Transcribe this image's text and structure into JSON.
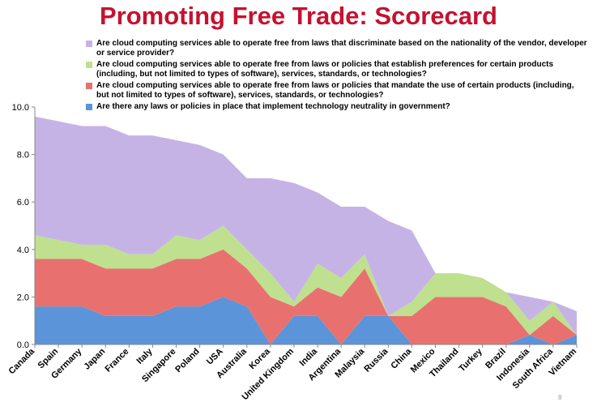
{
  "slide": {
    "title": "Promoting Free Trade: Scorecard",
    "page_number": "8"
  },
  "chart_data": {
    "type": "area",
    "title": "",
    "xlabel": "",
    "ylabel": "",
    "ylim": [
      0,
      10
    ],
    "yticks": [
      "0.0",
      "2.0",
      "4.0",
      "6.0",
      "8.0",
      "10.0"
    ],
    "grid": false,
    "legend_position": "top",
    "categories": [
      "Canada",
      "Spain",
      "Germany",
      "Japan",
      "France",
      "Italy",
      "Singapore",
      "Poland",
      "USA",
      "Australia",
      "Korea",
      "United Kingdom",
      "India",
      "Argentina",
      "Malaysia",
      "Russia",
      "China",
      "Mexico",
      "Thailand",
      "Turkey",
      "Brazil",
      "Indonesia",
      "South Africa",
      "Vietnam"
    ],
    "series": [
      {
        "name": "Are there any laws or policies in place that implement technology neutrality in government?",
        "color": "#5b94d9",
        "values": [
          1.6,
          1.6,
          1.6,
          1.2,
          1.2,
          1.2,
          1.6,
          1.6,
          2.0,
          1.6,
          0.0,
          1.2,
          1.2,
          0.0,
          1.2,
          1.2,
          0.0,
          0.0,
          0.0,
          0.0,
          0.0,
          0.4,
          0.0,
          0.4
        ]
      },
      {
        "name": "Are cloud computing services able to operate free from laws or policies that mandate the use of certain products (including, but not limited to types of software), services, standards, or technologies?",
        "color": "#e8716f",
        "values": [
          2.0,
          2.0,
          2.0,
          2.0,
          2.0,
          2.0,
          2.0,
          2.0,
          2.0,
          1.6,
          2.0,
          0.4,
          1.2,
          2.0,
          2.0,
          0.0,
          1.2,
          2.0,
          2.0,
          2.0,
          1.6,
          0.0,
          1.2,
          0.0
        ]
      },
      {
        "name": "Are cloud computing services able to operate free from laws or policies that establish preferences for certain products (including, but not limited to types of software), services, standards, or technologies?",
        "color": "#bfe08f",
        "values": [
          1.0,
          0.8,
          0.6,
          1.0,
          0.6,
          0.6,
          1.0,
          0.8,
          1.0,
          0.8,
          1.0,
          0.2,
          1.0,
          0.8,
          0.6,
          0.0,
          0.6,
          1.0,
          1.0,
          0.8,
          0.6,
          0.6,
          0.6,
          0.0
        ]
      },
      {
        "name": "Are cloud computing services able to operate free from laws that discriminate based on the nationality of the vendor, developer or service provider?",
        "color": "#c6b3e6",
        "values": [
          5.0,
          5.0,
          5.0,
          5.0,
          5.0,
          5.0,
          4.0,
          4.0,
          3.0,
          3.0,
          4.0,
          5.0,
          3.0,
          3.0,
          2.0,
          4.0,
          3.0,
          0.0,
          0.0,
          0.0,
          0.0,
          1.0,
          0.0,
          1.0
        ]
      }
    ]
  }
}
